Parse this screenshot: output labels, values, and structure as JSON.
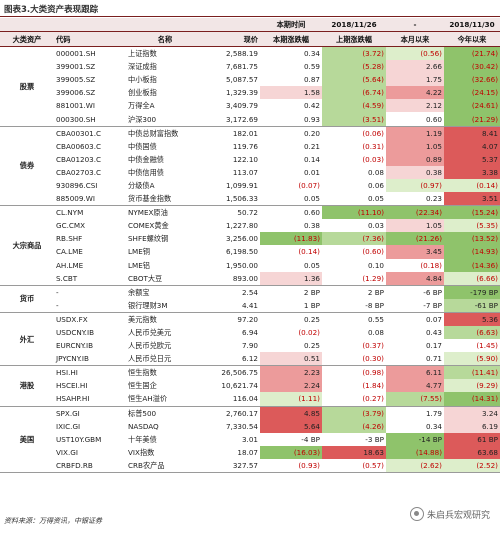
{
  "title": "图表3.大类资产表现跟踪",
  "header": {
    "top": {
      "dates_1": "2018/11/26",
      "dash": "-",
      "date_2": "2018/11/30"
    },
    "cols": {
      "category": "大类资产",
      "code": "代码",
      "name": "名称",
      "price": "现价",
      "week_change": "本期涨跌幅",
      "prev_week_change": "上期涨跌幅",
      "mtd": "本月以来",
      "ytd": "今年以来"
    },
    "top_left": "本期时间"
  },
  "groups": [
    {
      "category": "股票",
      "rows": [
        {
          "code": "000001.SH",
          "name": "上证指数",
          "price": "2,588.19",
          "c1": "0.34",
          "c2": "(3.72)",
          "c3": "(0.56)",
          "c4": "(21.74)",
          "s1": "",
          "s2": "g2",
          "s3": "g1",
          "s4": "g3"
        },
        {
          "code": "399001.SZ",
          "name": "深证成指",
          "price": "7,681.75",
          "c1": "0.59",
          "c2": "(5.28)",
          "c3": "2.66",
          "c4": "(30.42)",
          "s1": "",
          "s2": "g2",
          "s3": "r1",
          "s4": "g3"
        },
        {
          "code": "399005.SZ",
          "name": "中小板指",
          "price": "5,087.57",
          "c1": "0.87",
          "c2": "(5.64)",
          "c3": "1.75",
          "c4": "(32.66)",
          "s1": "",
          "s2": "g2",
          "s3": "r1",
          "s4": "g3"
        },
        {
          "code": "399006.SZ",
          "name": "创业板指",
          "price": "1,329.39",
          "c1": "1.58",
          "c2": "(6.74)",
          "c3": "4.22",
          "c4": "(24.15)",
          "s1": "r1",
          "s2": "g2",
          "s3": "r2",
          "s4": "g3"
        },
        {
          "code": "881001.WI",
          "name": "万得全A",
          "price": "3,409.79",
          "c1": "0.42",
          "c2": "(4.59)",
          "c3": "2.12",
          "c4": "(24.61)",
          "s1": "",
          "s2": "g2",
          "s3": "r1",
          "s4": "g3"
        },
        {
          "code": "000300.SH",
          "name": "沪深300",
          "price": "3,172.69",
          "c1": "0.93",
          "c2": "(3.51)",
          "c3": "0.60",
          "c4": "(21.29)",
          "s1": "",
          "s2": "g2",
          "s3": "",
          "s4": "g3"
        }
      ]
    },
    {
      "category": "债券",
      "rows": [
        {
          "code": "CBA00301.C",
          "name": "中债总财富指数",
          "price": "182.01",
          "c1": "0.20",
          "c2": "(0.06)",
          "c3": "1.19",
          "c4": "8.41",
          "s1": "",
          "s2": "",
          "s3": "r2",
          "s4": "r3"
        },
        {
          "code": "CBA00603.C",
          "name": "中债国债",
          "price": "119.76",
          "c1": "0.21",
          "c2": "(0.31)",
          "c3": "1.05",
          "c4": "4.07",
          "s1": "",
          "s2": "",
          "s3": "r2",
          "s4": "r3"
        },
        {
          "code": "CBA01203.C",
          "name": "中债金融债",
          "price": "122.10",
          "c1": "0.14",
          "c2": "(0.03)",
          "c3": "0.89",
          "c4": "5.37",
          "s1": "",
          "s2": "",
          "s3": "r2",
          "s4": "r3"
        },
        {
          "code": "CBA02703.C",
          "name": "中债信用债",
          "price": "113.07",
          "c1": "0.01",
          "c2": "0.08",
          "c3": "0.38",
          "c4": "3.38",
          "s1": "",
          "s2": "",
          "s3": "r1",
          "s4": "r3"
        },
        {
          "code": "930896.CSI",
          "name": "分级债A",
          "price": "1,099.91",
          "c1": "(0.07)",
          "c2": "0.06",
          "c3": "(0.97)",
          "c4": "(0.14)",
          "s1": "",
          "s2": "",
          "s3": "g1",
          "s4": "g1"
        },
        {
          "code": "885009.WI",
          "name": "货币基金指数",
          "price": "1,506.33",
          "c1": "0.05",
          "c2": "0.05",
          "c3": "0.23",
          "c4": "3.51",
          "s1": "",
          "s2": "",
          "s3": "",
          "s4": "r3"
        }
      ]
    },
    {
      "category": "大宗商品",
      "rows": [
        {
          "code": "CL.NYM",
          "name": "NYMEX原油",
          "price": "50.72",
          "c1": "0.60",
          "c2": "(11.10)",
          "c3": "(22.34)",
          "c4": "(15.24)",
          "s1": "",
          "s2": "g3",
          "s3": "g3",
          "s4": "g3"
        },
        {
          "code": "GC.CMX",
          "name": "COMEX黄金",
          "price": "1,227.80",
          "c1": "0.38",
          "c2": "0.03",
          "c3": "1.05",
          "c4": "(5.35)",
          "s1": "",
          "s2": "",
          "s3": "r1",
          "s4": "g1"
        },
        {
          "code": "RB.SHF",
          "name": "SHFE螺纹钢",
          "price": "3,256.00",
          "c1": "(11.83)",
          "c2": "(7.36)",
          "c3": "(21.26)",
          "c4": "(13.52)",
          "s1": "g3",
          "s2": "g2",
          "s3": "g3",
          "s4": "g3"
        },
        {
          "code": "CA.LME",
          "name": "LME铜",
          "price": "6,198.50",
          "c1": "(0.14)",
          "c2": "(0.60)",
          "c3": "3.45",
          "c4": "(14.93)",
          "s1": "",
          "s2": "",
          "s3": "r2",
          "s4": "g3"
        },
        {
          "code": "AH.LME",
          "name": "LME铝",
          "price": "1,950.00",
          "c1": "0.05",
          "c2": "0.10",
          "c3": "(0.18)",
          "c4": "(14.36)",
          "s1": "",
          "s2": "",
          "s3": "",
          "s4": "g3"
        },
        {
          "code": "S.CBT",
          "name": "CBOT大豆",
          "price": "893.00",
          "c1": "1.36",
          "c2": "(1.29)",
          "c3": "4.84",
          "c4": "(6.66)",
          "s1": "r1",
          "s2": "",
          "s3": "r2",
          "s4": "g1"
        }
      ]
    },
    {
      "category": "货币",
      "rows": [
        {
          "code": "-",
          "name": "余额宝",
          "price": "2.54",
          "c1": "2 BP",
          "c2": "2 BP",
          "c3": "-6 BP",
          "c4": "-179 BP",
          "s1": "",
          "s2": "",
          "s3": "",
          "s4": "g3"
        },
        {
          "code": "-",
          "name": "银行理财3M",
          "price": "4.41",
          "c1": "1 BP",
          "c2": "-8 BP",
          "c3": "-7 BP",
          "c4": "-61 BP",
          "s1": "",
          "s2": "",
          "s3": "",
          "s4": "g2"
        }
      ]
    },
    {
      "category": "外汇",
      "rows": [
        {
          "code": "USDX.FX",
          "name": "美元指数",
          "price": "97.20",
          "c1": "0.25",
          "c2": "0.55",
          "c3": "0.07",
          "c4": "5.36",
          "s1": "",
          "s2": "",
          "s3": "",
          "s4": "r3"
        },
        {
          "code": "USDCNY.IB",
          "name": "人民币兑美元",
          "price": "6.94",
          "c1": "(0.02)",
          "c2": "0.08",
          "c3": "0.43",
          "c4": "(6.63)",
          "s1": "",
          "s2": "",
          "s3": "",
          "s4": "g2"
        },
        {
          "code": "EURCNY.IB",
          "name": "人民币兑欧元",
          "price": "7.90",
          "c1": "0.25",
          "c2": "(0.37)",
          "c3": "0.17",
          "c4": "(1.45)",
          "s1": "",
          "s2": "",
          "s3": "",
          "s4": ""
        },
        {
          "code": "JPYCNY.IB",
          "name": "人民币兑日元",
          "price": "6.12",
          "c1": "0.51",
          "c2": "(0.30)",
          "c3": "0.71",
          "c4": "(5.90)",
          "s1": "r1",
          "s2": "",
          "s3": "",
          "s4": "g1"
        }
      ]
    },
    {
      "category": "港股",
      "rows": [
        {
          "code": "HSI.HI",
          "name": "恒生指数",
          "price": "26,506.75",
          "c1": "2.23",
          "c2": "(0.98)",
          "c3": "6.11",
          "c4": "(11.41)",
          "s1": "r2",
          "s2": "",
          "s3": "r2",
          "s4": "g2"
        },
        {
          "code": "HSCEI.HI",
          "name": "恒生国企",
          "price": "10,621.74",
          "c1": "2.24",
          "c2": "(1.84)",
          "c3": "4.77",
          "c4": "(9.29)",
          "s1": "r2",
          "s2": "",
          "s3": "r2",
          "s4": "g1"
        },
        {
          "code": "HSAHP.HI",
          "name": "恒生AH溢价",
          "price": "116.04",
          "c1": "(1.11)",
          "c2": "(0.27)",
          "c3": "(7.55)",
          "c4": "(14.31)",
          "s1": "g1",
          "s2": "",
          "s3": "g2",
          "s4": "g3"
        }
      ]
    },
    {
      "category": "美国",
      "rows": [
        {
          "code": "SPX.GI",
          "name": "标普500",
          "price": "2,760.17",
          "c1": "4.85",
          "c2": "(3.79)",
          "c3": "1.79",
          "c4": "3.24",
          "s1": "r3",
          "s2": "g2",
          "s3": "",
          "s4": "r1"
        },
        {
          "code": "IXIC.GI",
          "name": "NASDAQ",
          "price": "7,330.54",
          "c1": "5.64",
          "c2": "(4.26)",
          "c3": "0.34",
          "c4": "6.19",
          "s1": "r3",
          "s2": "g2",
          "s3": "",
          "s4": "r1"
        },
        {
          "code": "UST10Y.GBM",
          "name": "十年美债",
          "price": "3.01",
          "c1": "-4 BP",
          "c2": "-3 BP",
          "c3": "-14 BP",
          "c4": "61 BP",
          "s1": "",
          "s2": "",
          "s3": "g3",
          "s4": "r3"
        },
        {
          "code": "VIX.GI",
          "name": "VIX指数",
          "price": "18.07",
          "c1": "(16.03)",
          "c2": "18.63",
          "c3": "(14.88)",
          "c4": "63.68",
          "s1": "g3",
          "s2": "r3",
          "s3": "g3",
          "s4": "r3"
        },
        {
          "code": "CRBFD.RB",
          "name": "CRB农产品",
          "price": "327.57",
          "c1": "(0.93)",
          "c2": "(0.57)",
          "c3": "(2.62)",
          "c4": "(2.52)",
          "s1": "",
          "s2": "",
          "s3": "g1",
          "s4": "g1"
        }
      ]
    }
  ],
  "source": "资料来源：万得资讯，中银证券",
  "watermark": "朱启兵宏观研究"
}
